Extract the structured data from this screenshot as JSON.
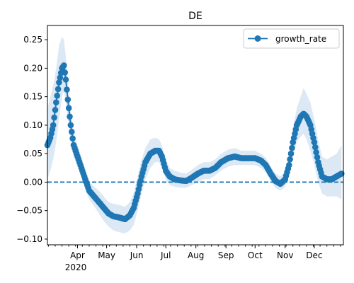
{
  "chart_data": {
    "type": "line",
    "title": "DE",
    "xlabel": "",
    "ylabel": "",
    "xlim": [
      "2020-03-01",
      "2020-12-31"
    ],
    "ylim": [
      -0.11,
      0.275
    ],
    "yticks": [
      -0.1,
      -0.05,
      0.0,
      0.05,
      0.1,
      0.15,
      0.2,
      0.25
    ],
    "ytick_labels": [
      "−0.10",
      "−0.05",
      "0.00",
      "0.05",
      "0.10",
      "0.15",
      "0.20",
      "0.25"
    ],
    "xticks": [
      {
        "date": "2020-04-01",
        "label": "Apr"
      },
      {
        "date": "2020-05-01",
        "label": "May"
      },
      {
        "date": "2020-06-01",
        "label": "Jun"
      },
      {
        "date": "2020-07-01",
        "label": "Jul"
      },
      {
        "date": "2020-08-01",
        "label": "Aug"
      },
      {
        "date": "2020-09-01",
        "label": "Sep"
      },
      {
        "date": "2020-10-01",
        "label": "Oct"
      },
      {
        "date": "2020-11-01",
        "label": "Nov"
      },
      {
        "date": "2020-12-01",
        "label": "Dec"
      }
    ],
    "year_label": "2020",
    "legend": {
      "placement": "top-right",
      "entries": [
        "growth_rate"
      ]
    },
    "reference_line": {
      "y": 0,
      "style": "dashed"
    },
    "colors": {
      "line": "#1f77b4",
      "band": "#dce9f5"
    },
    "series": [
      {
        "name": "growth_rate",
        "points": [
          [
            "2020-03-01",
            0.065,
            0.005,
            0.13
          ],
          [
            "2020-03-04",
            0.078,
            0.02,
            0.15
          ],
          [
            "2020-03-07",
            0.1,
            0.04,
            0.17
          ],
          [
            "2020-03-10",
            0.14,
            0.07,
            0.2
          ],
          [
            "2020-03-13",
            0.175,
            0.11,
            0.24
          ],
          [
            "2020-03-16",
            0.2,
            0.15,
            0.255
          ],
          [
            "2020-03-18",
            0.205,
            0.16,
            0.25
          ],
          [
            "2020-03-20",
            0.18,
            0.14,
            0.22
          ],
          [
            "2020-03-22",
            0.145,
            0.11,
            0.18
          ],
          [
            "2020-03-25",
            0.1,
            0.075,
            0.13
          ],
          [
            "2020-03-28",
            0.065,
            0.045,
            0.09
          ],
          [
            "2020-04-01",
            0.045,
            0.028,
            0.065
          ],
          [
            "2020-04-05",
            0.025,
            0.008,
            0.043
          ],
          [
            "2020-04-09",
            0.005,
            -0.012,
            0.022
          ],
          [
            "2020-04-13",
            -0.015,
            -0.03,
            0.002
          ],
          [
            "2020-04-18",
            -0.025,
            -0.042,
            -0.008
          ],
          [
            "2020-04-23",
            -0.035,
            -0.055,
            -0.015
          ],
          [
            "2020-04-28",
            -0.045,
            -0.068,
            -0.025
          ],
          [
            "2020-05-03",
            -0.055,
            -0.078,
            -0.035
          ],
          [
            "2020-05-08",
            -0.06,
            -0.085,
            -0.038
          ],
          [
            "2020-05-14",
            -0.062,
            -0.088,
            -0.04
          ],
          [
            "2020-05-20",
            -0.065,
            -0.09,
            -0.043
          ],
          [
            "2020-05-25",
            -0.058,
            -0.085,
            -0.035
          ],
          [
            "2020-05-29",
            -0.045,
            -0.075,
            -0.018
          ],
          [
            "2020-06-02",
            -0.02,
            -0.05,
            0.01
          ],
          [
            "2020-06-06",
            0.01,
            -0.02,
            0.04
          ],
          [
            "2020-06-10",
            0.035,
            0.005,
            0.06
          ],
          [
            "2020-06-15",
            0.05,
            0.025,
            0.075
          ],
          [
            "2020-06-20",
            0.055,
            0.035,
            0.078
          ],
          [
            "2020-06-24",
            0.055,
            0.035,
            0.075
          ],
          [
            "2020-06-27",
            0.045,
            0.025,
            0.065
          ],
          [
            "2020-07-01",
            0.02,
            0.005,
            0.04
          ],
          [
            "2020-07-05",
            0.01,
            -0.005,
            0.025
          ],
          [
            "2020-07-10",
            0.005,
            -0.008,
            0.02
          ],
          [
            "2020-07-16",
            0.003,
            -0.01,
            0.017
          ],
          [
            "2020-07-22",
            0.002,
            -0.01,
            0.015
          ],
          [
            "2020-07-28",
            0.008,
            -0.005,
            0.022
          ],
          [
            "2020-08-03",
            0.015,
            0.0,
            0.03
          ],
          [
            "2020-08-09",
            0.02,
            0.005,
            0.035
          ],
          [
            "2020-08-15",
            0.02,
            0.005,
            0.035
          ],
          [
            "2020-08-21",
            0.025,
            0.012,
            0.04
          ],
          [
            "2020-08-27",
            0.035,
            0.02,
            0.05
          ],
          [
            "2020-09-03",
            0.042,
            0.027,
            0.057
          ],
          [
            "2020-09-10",
            0.045,
            0.03,
            0.06
          ],
          [
            "2020-09-17",
            0.042,
            0.03,
            0.055
          ],
          [
            "2020-09-24",
            0.042,
            0.03,
            0.055
          ],
          [
            "2020-10-01",
            0.042,
            0.03,
            0.055
          ],
          [
            "2020-10-07",
            0.038,
            0.025,
            0.05
          ],
          [
            "2020-10-12",
            0.03,
            0.017,
            0.043
          ],
          [
            "2020-10-17",
            0.015,
            0.002,
            0.028
          ],
          [
            "2020-10-22",
            0.002,
            -0.01,
            0.015
          ],
          [
            "2020-10-27",
            -0.003,
            -0.015,
            0.01
          ],
          [
            "2020-11-01",
            0.005,
            -0.008,
            0.018
          ],
          [
            "2020-11-05",
            0.03,
            0.012,
            0.05
          ],
          [
            "2020-11-09",
            0.07,
            0.045,
            0.095
          ],
          [
            "2020-11-13",
            0.1,
            0.07,
            0.13
          ],
          [
            "2020-11-17",
            0.115,
            0.08,
            0.15
          ],
          [
            "2020-11-20",
            0.12,
            0.085,
            0.165
          ],
          [
            "2020-11-23",
            0.115,
            0.075,
            0.155
          ],
          [
            "2020-11-27",
            0.1,
            0.055,
            0.14
          ],
          [
            "2020-12-01",
            0.07,
            0.03,
            0.11
          ],
          [
            "2020-12-05",
            0.035,
            0.0,
            0.075
          ],
          [
            "2020-12-09",
            0.01,
            -0.02,
            0.045
          ],
          [
            "2020-12-14",
            0.005,
            -0.025,
            0.04
          ],
          [
            "2020-12-19",
            0.005,
            -0.025,
            0.045
          ],
          [
            "2020-12-24",
            0.01,
            -0.025,
            0.05
          ],
          [
            "2020-12-29",
            0.015,
            -0.03,
            0.065
          ]
        ]
      }
    ]
  }
}
